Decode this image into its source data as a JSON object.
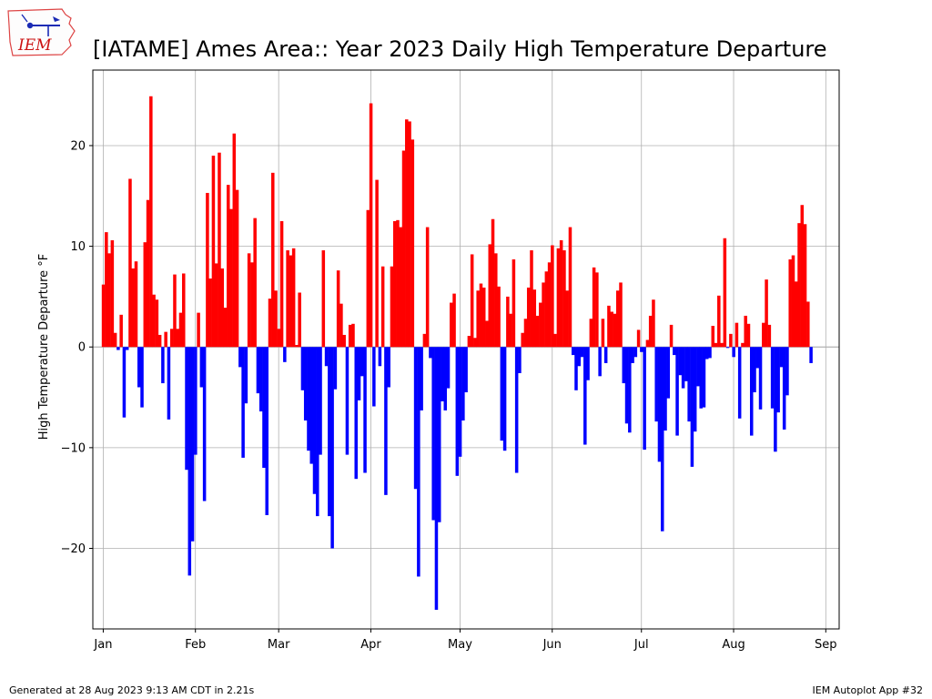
{
  "logo_text": "IEM",
  "footer": {
    "left": "Generated at 28 Aug 2023 9:13 AM CDT in 2.21s",
    "right": "IEM Autoplot App #32"
  },
  "colors": {
    "positive": "#ff0000",
    "negative": "#0000ff",
    "grid": "#b0b0b0",
    "baseline": "#aaaaaa"
  },
  "chart_data": {
    "type": "bar",
    "title": "[IATAME] Ames Area:: Year 2023 Daily High Temperature Departure",
    "xlabel": "",
    "ylabel": "High Temperature Departure °F",
    "ylim": [
      -28,
      27.5
    ],
    "yticks": [
      -20,
      -10,
      0,
      10,
      20
    ],
    "ytick_labels": [
      "−20",
      "−10",
      "0",
      "10",
      "20"
    ],
    "xlim_doy": [
      -3.5,
      247.5
    ],
    "xticks": [
      {
        "doy": 0,
        "label": "Jan"
      },
      {
        "doy": 31,
        "label": "Feb"
      },
      {
        "doy": 59,
        "label": "Mar"
      },
      {
        "doy": 90,
        "label": "Apr"
      },
      {
        "doy": 120,
        "label": "May"
      },
      {
        "doy": 151,
        "label": "Jun"
      },
      {
        "doy": 181,
        "label": "Jul"
      },
      {
        "doy": 212,
        "label": "Aug"
      },
      {
        "doy": 243,
        "label": "Sep"
      }
    ],
    "grid": true,
    "start_date": "2023-01-01",
    "values": [
      6.2,
      11.4,
      9.3,
      10.6,
      1.4,
      -0.3,
      3.2,
      -7.0,
      -0.3,
      16.7,
      7.8,
      8.5,
      -4.0,
      -6.0,
      10.4,
      14.6,
      24.9,
      5.2,
      4.7,
      1.2,
      -3.6,
      1.5,
      -7.2,
      1.8,
      7.2,
      1.8,
      3.4,
      7.3,
      -12.2,
      -22.7,
      -19.3,
      -10.7,
      3.4,
      -4.0,
      -15.3,
      15.3,
      6.8,
      19.0,
      8.3,
      19.3,
      7.8,
      3.9,
      16.1,
      13.7,
      21.2,
      15.6,
      -2.0,
      -11.0,
      -5.6,
      9.3,
      8.4,
      12.8,
      -4.6,
      -6.4,
      -12.0,
      -16.7,
      4.8,
      17.3,
      5.6,
      1.8,
      12.5,
      -1.5,
      9.6,
      9.1,
      9.8,
      0.2,
      5.4,
      -4.3,
      -7.3,
      -10.3,
      -11.6,
      -14.6,
      -16.8,
      -10.7,
      9.6,
      -1.9,
      -16.8,
      -20.0,
      -4.2,
      7.6,
      4.3,
      1.2,
      -10.7,
      2.2,
      2.3,
      -13.1,
      -5.3,
      -2.9,
      -12.5,
      13.6,
      24.2,
      -5.9,
      16.6,
      -1.9,
      8.0,
      -14.7,
      -4.0,
      8.0,
      12.5,
      12.6,
      11.9,
      19.5,
      22.6,
      22.4,
      20.6,
      -14.1,
      -22.8,
      -6.3,
      1.3,
      11.9,
      -1.1,
      -17.2,
      -26.1,
      -17.4,
      -5.4,
      -6.3,
      -4.1,
      4.4,
      5.3,
      -12.8,
      -10.9,
      -7.3,
      -4.5,
      1.1,
      9.2,
      0.9,
      5.6,
      6.3,
      5.9,
      2.6,
      10.2,
      12.7,
      9.3,
      6.0,
      -9.3,
      -10.3,
      5.0,
      3.3,
      8.7,
      -12.5,
      -2.6,
      1.4,
      2.8,
      5.9,
      9.6,
      5.7,
      3.1,
      4.4,
      6.4,
      7.5,
      8.4,
      10.1,
      1.3,
      9.8,
      10.6,
      9.6,
      5.6,
      11.9,
      -0.8,
      -4.3,
      -1.9,
      -1.0,
      -9.7,
      -3.3,
      2.8,
      7.9,
      7.4,
      -2.9,
      2.8,
      -1.6,
      4.1,
      3.5,
      3.3,
      5.6,
      6.4,
      -3.6,
      -7.6,
      -8.5,
      -1.6,
      -1.0,
      1.7,
      -0.5,
      -10.2,
      0.7,
      3.1,
      4.7,
      -7.4,
      -11.4,
      -18.3,
      -8.3,
      -5.1,
      2.2,
      -0.8,
      -8.8,
      -2.8,
      -4.1,
      -3.4,
      -7.4,
      -11.9,
      -8.4,
      -3.9,
      -6.1,
      -6.0,
      -1.2,
      -1.1,
      2.1,
      0.4,
      5.1,
      0.4,
      10.8,
      -0.1,
      1.3,
      -1.0,
      2.4,
      -7.1,
      0.4,
      3.1,
      2.3,
      -8.8,
      -4.5,
      -2.1,
      -6.2,
      2.4,
      6.7,
      2.2,
      -6.1,
      -10.4,
      -6.5,
      -2.0,
      -8.2,
      -4.8,
      8.7,
      9.1,
      6.5,
      12.3,
      14.1,
      12.2,
      4.5,
      -1.6
    ]
  }
}
